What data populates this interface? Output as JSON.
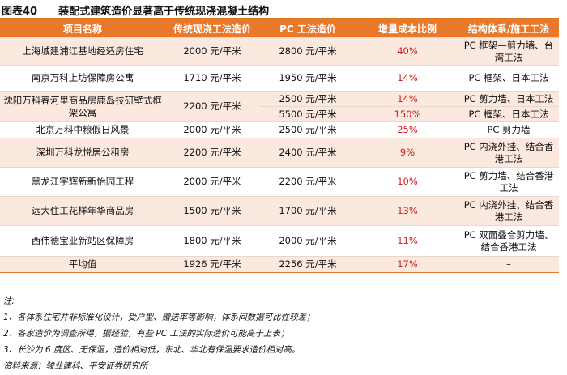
{
  "header": {
    "label": "图表40",
    "title": "装配式建筑造价显著高于传统现浇混凝土结构"
  },
  "table": {
    "columns": [
      "项目名称",
      "传统现浇工法造价",
      "PC 工法造价",
      "增量成本比例",
      "结构体系/施工工法"
    ],
    "rows": [
      {
        "name": "上海城建浦江基地经适房住宅",
        "trad": "2000 元/平米",
        "pc": "2800 元/平米",
        "ratio": "40%",
        "structure": "PC 框架—剪力墙、台湾工法"
      },
      {
        "name": "南京万科上坊保障房公寓",
        "trad": "1710 元/平米",
        "pc": "1950 元/平米",
        "ratio": "14%",
        "structure": "PC 框架、日本工法"
      },
      {
        "name": "沈阳万科春河里商品房鹿岛技研壁式框架公寓",
        "trad": "2200 元/平米",
        "pc_a": "2500 元/平米",
        "ratio_a": "14%",
        "structure_a": "PC 剪力墙、日本工法",
        "pc_b": "5500 元/平米",
        "ratio_b": "150%",
        "structure_b": "PC 框架、日本工法"
      },
      {
        "name": "北京万科中粮假日风景",
        "trad": "2000 元/平米",
        "pc": "2500 元/平米",
        "ratio": "25%",
        "structure": "PC 剪力墙"
      },
      {
        "name": "深圳万科龙悦居公租房",
        "trad": "2200 元/平米",
        "pc": "2400 元/平米",
        "ratio": "9%",
        "structure": "PC 内浇外挂、结合香港工法"
      },
      {
        "name": "黑龙江宇辉新新怡园工程",
        "trad": "2000 元/平米",
        "pc": "2200 元/平米",
        "ratio": "10%",
        "structure": "PC 剪力墙、结合香港工法"
      },
      {
        "name": "远大住工花样年华商品房",
        "trad": "1500 元/平米",
        "pc": "1700 元/平米",
        "ratio": "13%",
        "structure": "PC 内浇外挂、结合香港工法"
      },
      {
        "name": "西伟德宝业新站区保障房",
        "trad": "1800 元/平米",
        "pc": "2000 元/平米",
        "ratio": "11%",
        "structure": "PC 双面叠合剪力墙、结合香港工法"
      }
    ],
    "average": {
      "name": "平均值",
      "trad": "1926 元/平米",
      "pc": "2256 元/平米",
      "ratio": "17%",
      "structure": "–"
    }
  },
  "notes": {
    "heading": "注:",
    "items": [
      "1、各体系住宅并非标准化设计，受户型、赠送率等影响，体系间数据可比性较差；",
      "2、各家造价为调查所得，据经验，有些 PC 工法的实际造价可能高于上表；",
      "3、长沙为 6 度区、无保温，造价相对低，东北、华北有保温要求造价相对高。"
    ],
    "source": "资料来源：骏业建科、平安证券研究所"
  }
}
